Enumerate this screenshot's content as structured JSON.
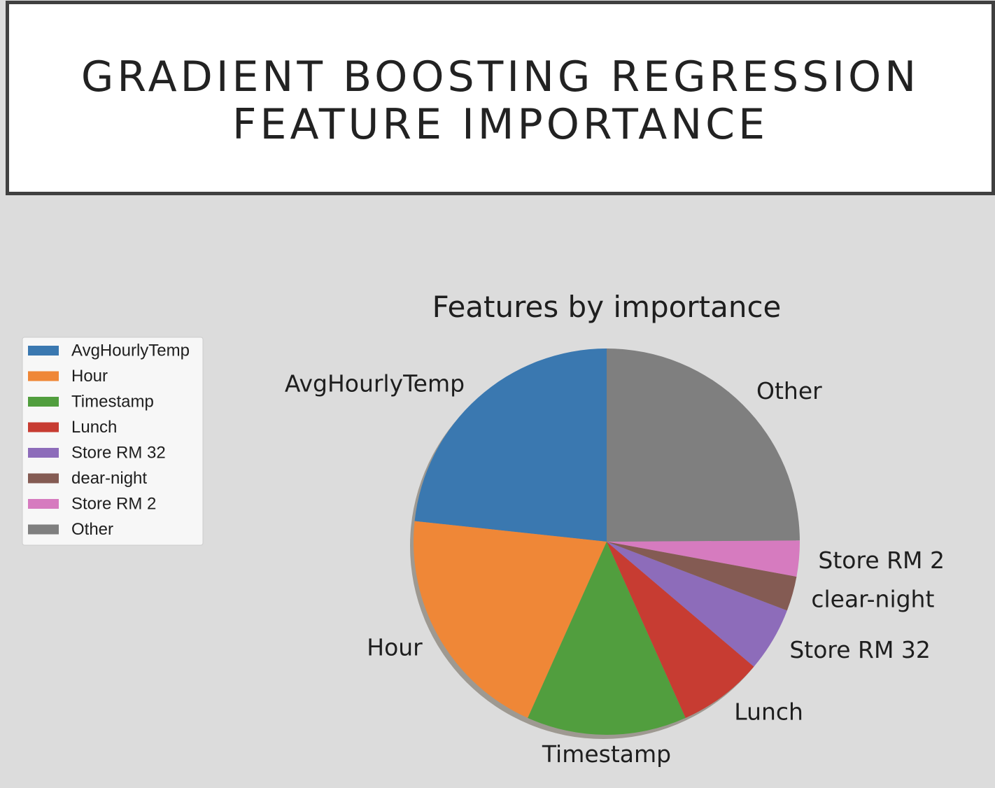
{
  "slide": {
    "title_line1": "GRADIENT BOOSTING REGRESSION",
    "title_line2": "FEATURE IMPORTANCE"
  },
  "chart_data": {
    "type": "pie",
    "title": "Features by importance",
    "start_angle_deg": 90,
    "direction": "counterclockwise",
    "shadow": true,
    "legend_position": "left",
    "categories": [
      "AvgHourlyTemp",
      "Hour",
      "Timestamp",
      "Lunch",
      "Store RM 32",
      "clear-night",
      "Store RM 2",
      "Other"
    ],
    "legend_labels": [
      "AvgHourlyTemp",
      "Hour",
      "Timestamp",
      "Lunch",
      "Store RM 32",
      "dear-night",
      "Store RM 2",
      "Other"
    ],
    "values": [
      23.3,
      20.0,
      13.4,
      7.1,
      5.4,
      2.9,
      3.0,
      24.9
    ],
    "unit": "%",
    "colors": [
      "#3a78b0",
      "#ef8737",
      "#519e3e",
      "#c73c32",
      "#8d6cba",
      "#845b53",
      "#d67bbf",
      "#7f7f7f"
    ]
  }
}
